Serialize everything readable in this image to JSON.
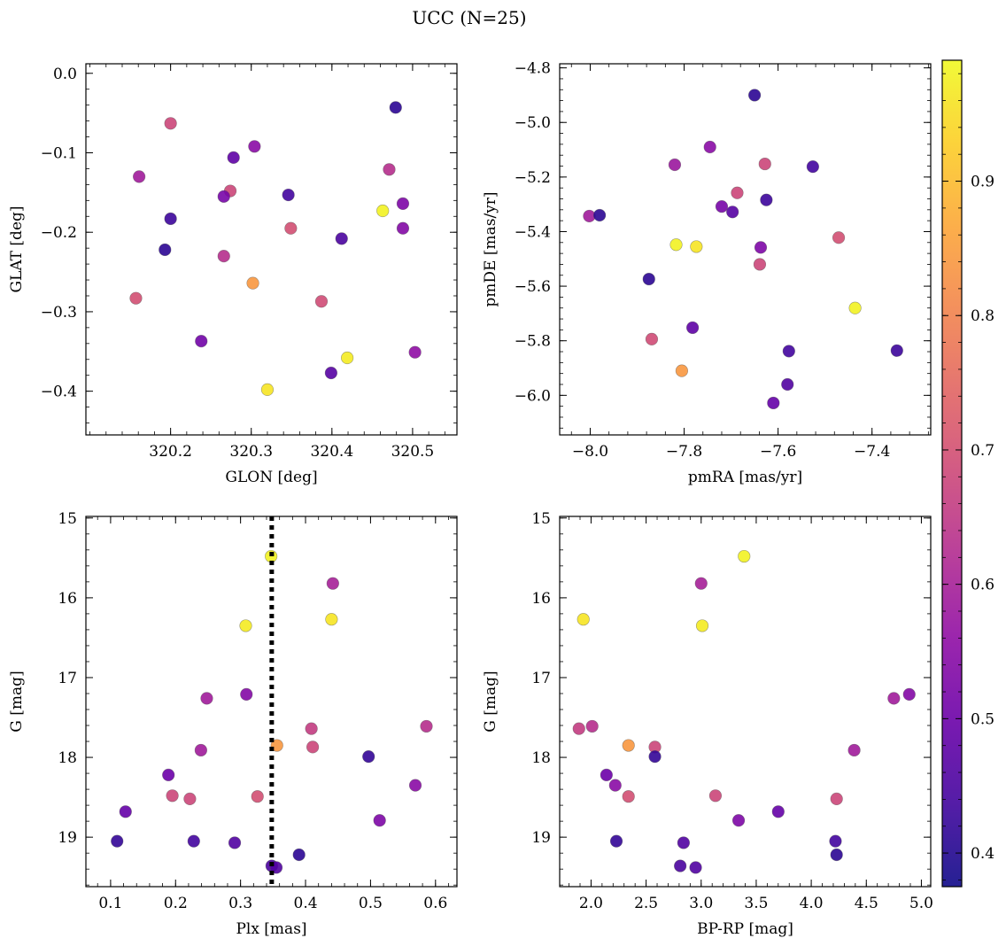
{
  "figure": {
    "title": "UCC (N=25)"
  },
  "colorbar": {
    "range": [
      0.375,
      0.99
    ],
    "ticks": [
      0.4,
      0.5,
      0.6,
      0.7,
      0.8,
      0.9
    ],
    "tick_labels": [
      "0.4",
      "0.5",
      "0.6",
      "0.7",
      "0.8",
      "0.9"
    ],
    "colormap": "plasma"
  },
  "chart_data": [
    {
      "type": "scatter",
      "xlabel": "GLON [deg]",
      "ylabel": "GLAT [deg]",
      "xlim": [
        320.095,
        320.555
      ],
      "ylim": [
        -0.455,
        0.012
      ],
      "xticks": [
        320.2,
        320.3,
        320.4,
        320.5
      ],
      "xtick_labels": [
        "320.2",
        "320.3",
        "320.4",
        "320.5"
      ],
      "yticks": [
        0.0,
        -0.1,
        -0.2,
        -0.3,
        -0.4
      ],
      "ytick_labels": [
        "0.0",
        "−0.1",
        "−0.2",
        "−0.3",
        "−0.4"
      ],
      "points": [
        {
          "x": 320.2,
          "y": -0.063,
          "c": 0.68
        },
        {
          "x": 320.479,
          "y": -0.043,
          "c": 0.41
        },
        {
          "x": 320.304,
          "y": -0.092,
          "c": 0.55
        },
        {
          "x": 320.278,
          "y": -0.106,
          "c": 0.48
        },
        {
          "x": 320.471,
          "y": -0.121,
          "c": 0.63
        },
        {
          "x": 320.161,
          "y": -0.13,
          "c": 0.59
        },
        {
          "x": 320.274,
          "y": -0.148,
          "c": 0.68
        },
        {
          "x": 320.346,
          "y": -0.153,
          "c": 0.44
        },
        {
          "x": 320.266,
          "y": -0.155,
          "c": 0.52
        },
        {
          "x": 320.488,
          "y": -0.164,
          "c": 0.53
        },
        {
          "x": 320.463,
          "y": -0.173,
          "c": 0.98
        },
        {
          "x": 320.2,
          "y": -0.183,
          "c": 0.43
        },
        {
          "x": 320.488,
          "y": -0.195,
          "c": 0.54
        },
        {
          "x": 320.349,
          "y": -0.195,
          "c": 0.7
        },
        {
          "x": 320.412,
          "y": -0.208,
          "c": 0.45
        },
        {
          "x": 320.193,
          "y": -0.222,
          "c": 0.41
        },
        {
          "x": 320.266,
          "y": -0.23,
          "c": 0.63
        },
        {
          "x": 320.302,
          "y": -0.264,
          "c": 0.84
        },
        {
          "x": 320.157,
          "y": -0.283,
          "c": 0.7
        },
        {
          "x": 320.387,
          "y": -0.287,
          "c": 0.69
        },
        {
          "x": 320.238,
          "y": -0.337,
          "c": 0.51
        },
        {
          "x": 320.503,
          "y": -0.351,
          "c": 0.56
        },
        {
          "x": 320.419,
          "y": -0.358,
          "c": 0.97
        },
        {
          "x": 320.399,
          "y": -0.377,
          "c": 0.47
        },
        {
          "x": 320.32,
          "y": -0.398,
          "c": 0.96
        }
      ]
    },
    {
      "type": "scatter",
      "xlabel": "pmRA [mas/yr]",
      "ylabel": "pmDE [mas/yr]",
      "xlim": [
        -8.065,
        -7.275
      ],
      "ylim": [
        -6.145,
        -4.785
      ],
      "xticks": [
        -8.0,
        -7.8,
        -7.6,
        -7.4
      ],
      "xtick_labels": [
        "−8.0",
        "−7.8",
        "−7.6",
        "−7.4"
      ],
      "yticks": [
        -4.8,
        -5.0,
        -5.2,
        -5.4,
        -5.6,
        -5.8,
        -6.0
      ],
      "ytick_labels": [
        "−4.8",
        "−5.0",
        "−5.2",
        "−5.4",
        "−5.6",
        "−5.8",
        "−6.0"
      ],
      "points": [
        {
          "x": -7.65,
          "y": -4.9,
          "c": 0.41
        },
        {
          "x": -7.745,
          "y": -5.09,
          "c": 0.55
        },
        {
          "x": -7.82,
          "y": -5.155,
          "c": 0.58
        },
        {
          "x": -7.628,
          "y": -5.152,
          "c": 0.68
        },
        {
          "x": -7.526,
          "y": -5.162,
          "c": 0.44
        },
        {
          "x": -7.687,
          "y": -5.258,
          "c": 0.68
        },
        {
          "x": -7.625,
          "y": -5.284,
          "c": 0.43
        },
        {
          "x": -7.72,
          "y": -5.308,
          "c": 0.52
        },
        {
          "x": -7.697,
          "y": -5.328,
          "c": 0.47
        },
        {
          "x": -8.002,
          "y": -5.343,
          "c": 0.59
        },
        {
          "x": -7.98,
          "y": -5.34,
          "c": 0.41
        },
        {
          "x": -7.817,
          "y": -5.448,
          "c": 0.98
        },
        {
          "x": -7.774,
          "y": -5.455,
          "c": 0.96
        },
        {
          "x": -7.637,
          "y": -5.458,
          "c": 0.53
        },
        {
          "x": -7.471,
          "y": -5.422,
          "c": 0.7
        },
        {
          "x": -7.639,
          "y": -5.52,
          "c": 0.68
        },
        {
          "x": -7.875,
          "y": -5.574,
          "c": 0.41
        },
        {
          "x": -7.436,
          "y": -5.68,
          "c": 0.98
        },
        {
          "x": -7.782,
          "y": -5.752,
          "c": 0.48
        },
        {
          "x": -7.869,
          "y": -5.794,
          "c": 0.69
        },
        {
          "x": -7.577,
          "y": -5.838,
          "c": 0.44
        },
        {
          "x": -7.347,
          "y": -5.836,
          "c": 0.43
        },
        {
          "x": -7.805,
          "y": -5.91,
          "c": 0.84
        },
        {
          "x": -7.58,
          "y": -5.96,
          "c": 0.46
        },
        {
          "x": -7.61,
          "y": -6.028,
          "c": 0.49
        }
      ]
    },
    {
      "type": "scatter",
      "xlabel": "Plx [mas]",
      "ylabel": "G [mag]",
      "xlim": [
        0.062,
        0.633
      ],
      "ylim": [
        19.62,
        14.98
      ],
      "xticks": [
        0.1,
        0.2,
        0.3,
        0.4,
        0.5,
        0.6
      ],
      "xtick_labels": [
        "0.1",
        "0.2",
        "0.3",
        "0.4",
        "0.5",
        "0.6"
      ],
      "yticks": [
        15,
        16,
        17,
        18,
        19
      ],
      "ytick_labels": [
        "15",
        "16",
        "17",
        "18",
        "19"
      ],
      "vline": 0.348,
      "points": [
        {
          "x": 0.347,
          "y": 15.48,
          "c": 0.98
        },
        {
          "x": 0.442,
          "y": 15.82,
          "c": 0.6
        },
        {
          "x": 0.44,
          "y": 16.27,
          "c": 0.96
        },
        {
          "x": 0.308,
          "y": 16.35,
          "c": 0.97
        },
        {
          "x": 0.309,
          "y": 17.21,
          "c": 0.54
        },
        {
          "x": 0.248,
          "y": 17.26,
          "c": 0.59
        },
        {
          "x": 0.586,
          "y": 17.61,
          "c": 0.63
        },
        {
          "x": 0.409,
          "y": 17.64,
          "c": 0.66
        },
        {
          "x": 0.356,
          "y": 17.85,
          "c": 0.84
        },
        {
          "x": 0.411,
          "y": 17.87,
          "c": 0.68
        },
        {
          "x": 0.239,
          "y": 17.91,
          "c": 0.59
        },
        {
          "x": 0.497,
          "y": 17.99,
          "c": 0.42
        },
        {
          "x": 0.189,
          "y": 18.22,
          "c": 0.5
        },
        {
          "x": 0.569,
          "y": 18.35,
          "c": 0.55
        },
        {
          "x": 0.195,
          "y": 18.48,
          "c": 0.68
        },
        {
          "x": 0.326,
          "y": 18.49,
          "c": 0.7
        },
        {
          "x": 0.222,
          "y": 18.52,
          "c": 0.68
        },
        {
          "x": 0.123,
          "y": 18.68,
          "c": 0.49
        },
        {
          "x": 0.514,
          "y": 18.79,
          "c": 0.53
        },
        {
          "x": 0.11,
          "y": 19.05,
          "c": 0.42
        },
        {
          "x": 0.228,
          "y": 19.05,
          "c": 0.44
        },
        {
          "x": 0.291,
          "y": 19.07,
          "c": 0.46
        },
        {
          "x": 0.39,
          "y": 19.22,
          "c": 0.41
        },
        {
          "x": 0.348,
          "y": 19.36,
          "c": 0.45
        },
        {
          "x": 0.355,
          "y": 19.38,
          "c": 0.46
        }
      ]
    },
    {
      "type": "scatter",
      "xlabel": "BP-RP [mag]",
      "ylabel": "G [mag]",
      "xlim": [
        1.715,
        5.085
      ],
      "ylim": [
        19.62,
        14.98
      ],
      "xticks": [
        2.0,
        2.5,
        3.0,
        3.5,
        4.0,
        4.5,
        5.0
      ],
      "xtick_labels": [
        "2.0",
        "2.5",
        "3.0",
        "3.5",
        "4.0",
        "4.5",
        "5.0"
      ],
      "yticks": [
        15,
        16,
        17,
        18,
        19
      ],
      "ytick_labels": [
        "15",
        "16",
        "17",
        "18",
        "19"
      ],
      "points": [
        {
          "x": 3.39,
          "y": 15.48,
          "c": 0.98
        },
        {
          "x": 3.0,
          "y": 15.82,
          "c": 0.6
        },
        {
          "x": 1.93,
          "y": 16.27,
          "c": 0.96
        },
        {
          "x": 3.01,
          "y": 16.35,
          "c": 0.97
        },
        {
          "x": 4.89,
          "y": 17.21,
          "c": 0.54
        },
        {
          "x": 4.75,
          "y": 17.26,
          "c": 0.59
        },
        {
          "x": 2.01,
          "y": 17.61,
          "c": 0.63
        },
        {
          "x": 1.89,
          "y": 17.64,
          "c": 0.66
        },
        {
          "x": 2.34,
          "y": 17.85,
          "c": 0.84
        },
        {
          "x": 2.58,
          "y": 17.87,
          "c": 0.68
        },
        {
          "x": 4.39,
          "y": 17.91,
          "c": 0.59
        },
        {
          "x": 2.58,
          "y": 17.99,
          "c": 0.42
        },
        {
          "x": 2.14,
          "y": 18.22,
          "c": 0.5
        },
        {
          "x": 2.22,
          "y": 18.35,
          "c": 0.55
        },
        {
          "x": 3.13,
          "y": 18.48,
          "c": 0.68
        },
        {
          "x": 2.34,
          "y": 18.49,
          "c": 0.7
        },
        {
          "x": 4.23,
          "y": 18.52,
          "c": 0.68
        },
        {
          "x": 3.7,
          "y": 18.68,
          "c": 0.49
        },
        {
          "x": 3.34,
          "y": 18.79,
          "c": 0.53
        },
        {
          "x": 2.23,
          "y": 19.05,
          "c": 0.42
        },
        {
          "x": 4.22,
          "y": 19.05,
          "c": 0.44
        },
        {
          "x": 2.84,
          "y": 19.07,
          "c": 0.46
        },
        {
          "x": 4.23,
          "y": 19.22,
          "c": 0.41
        },
        {
          "x": 2.81,
          "y": 19.36,
          "c": 0.45
        },
        {
          "x": 2.95,
          "y": 19.38,
          "c": 0.46
        }
      ]
    }
  ]
}
